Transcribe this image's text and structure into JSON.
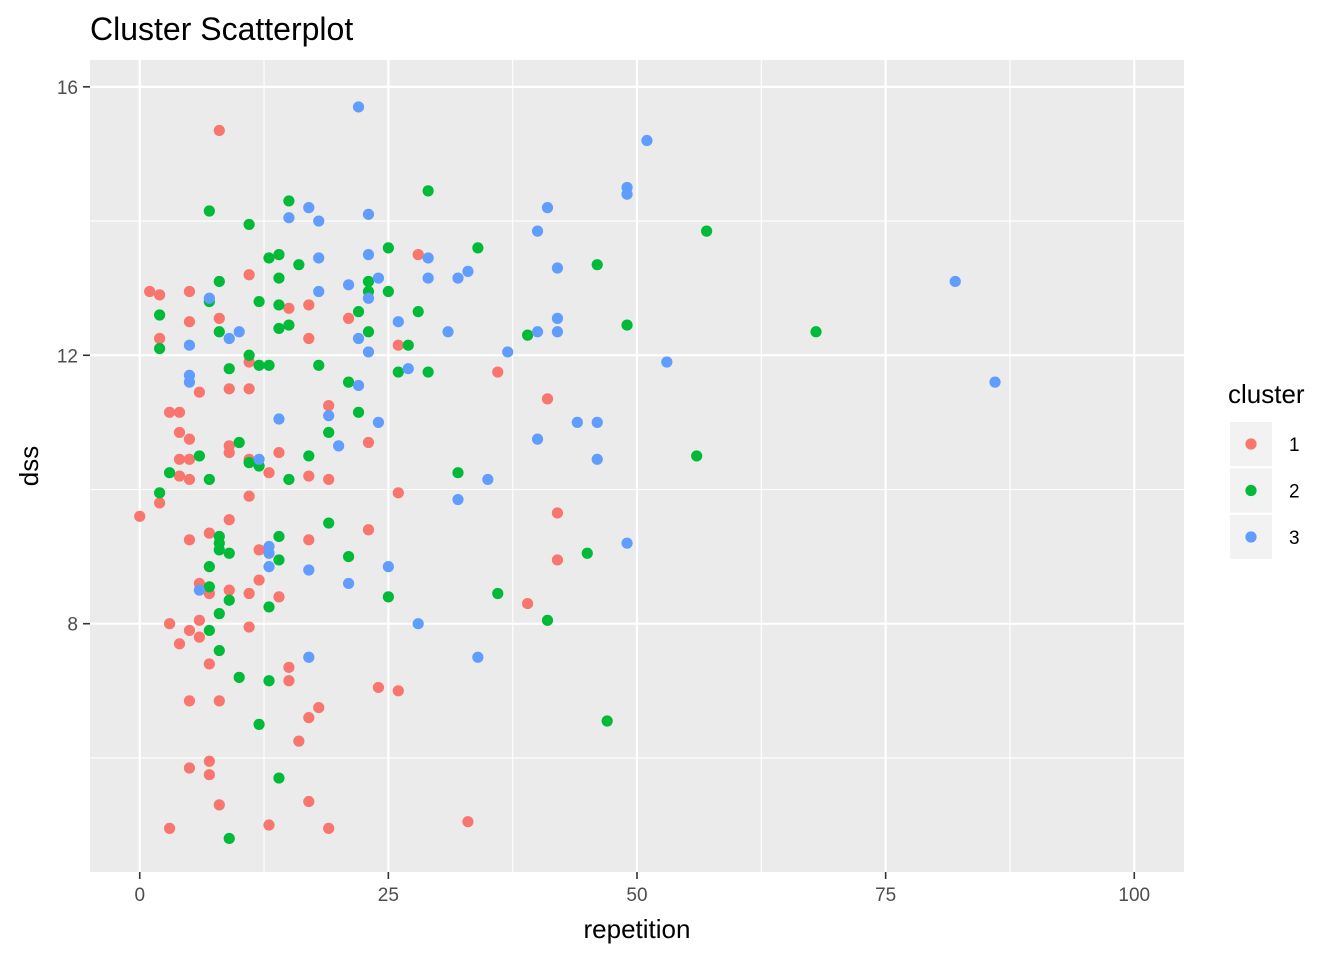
{
  "chart_data": {
    "type": "scatter",
    "title": "Cluster Scatterplot",
    "xlabel": "repetition",
    "ylabel": "dss",
    "xlim": [
      -5,
      105
    ],
    "ylim": [
      4.3,
      16.4
    ],
    "x_ticks": [
      0,
      25,
      50,
      75,
      100
    ],
    "y_ticks": [
      8,
      12,
      16
    ],
    "grid": true,
    "legend": {
      "title": "cluster",
      "position": "right"
    },
    "series": [
      {
        "name": "1",
        "color": "#F8766D",
        "points": [
          [
            0,
            9.6
          ],
          [
            1,
            12.95
          ],
          [
            2,
            12.9
          ],
          [
            2,
            12.25
          ],
          [
            2,
            9.8
          ],
          [
            3,
            11.15
          ],
          [
            3,
            8
          ],
          [
            3,
            4.95
          ],
          [
            4,
            11.15
          ],
          [
            4,
            10.85
          ],
          [
            4,
            10.45
          ],
          [
            4,
            10.2
          ],
          [
            4,
            7.7
          ],
          [
            5,
            12.95
          ],
          [
            5,
            12.5
          ],
          [
            5,
            10.75
          ],
          [
            5,
            10.45
          ],
          [
            5,
            10.15
          ],
          [
            5,
            9.25
          ],
          [
            5,
            7.9
          ],
          [
            5,
            6.85
          ],
          [
            5,
            5.85
          ],
          [
            6,
            11.45
          ],
          [
            6,
            8.6
          ],
          [
            6,
            8.05
          ],
          [
            6,
            7.8
          ],
          [
            7,
            9.35
          ],
          [
            7,
            8.45
          ],
          [
            7,
            7.4
          ],
          [
            7,
            5.95
          ],
          [
            7,
            5.75
          ],
          [
            8,
            15.35
          ],
          [
            8,
            12.55
          ],
          [
            8,
            6.85
          ],
          [
            8,
            5.3
          ],
          [
            9,
            11.5
          ],
          [
            9,
            10.65
          ],
          [
            9,
            10.55
          ],
          [
            9,
            9.55
          ],
          [
            9,
            8.5
          ],
          [
            11,
            13.2
          ],
          [
            11,
            11.9
          ],
          [
            11,
            11.5
          ],
          [
            11,
            10.45
          ],
          [
            11,
            9.9
          ],
          [
            11,
            8.45
          ],
          [
            11,
            7.95
          ],
          [
            12,
            9.1
          ],
          [
            12,
            8.65
          ],
          [
            13,
            10.25
          ],
          [
            13,
            5.0
          ],
          [
            14,
            10.55
          ],
          [
            14,
            8.4
          ],
          [
            15,
            12.7
          ],
          [
            15,
            7.35
          ],
          [
            15,
            7.15
          ],
          [
            16,
            6.25
          ],
          [
            17,
            12.75
          ],
          [
            17,
            12.25
          ],
          [
            17,
            10.2
          ],
          [
            17,
            9.25
          ],
          [
            17,
            6.6
          ],
          [
            17,
            5.35
          ],
          [
            18,
            6.75
          ],
          [
            19,
            11.25
          ],
          [
            19,
            10.15
          ],
          [
            19,
            4.95
          ],
          [
            21,
            12.55
          ],
          [
            23,
            10.7
          ],
          [
            23,
            9.4
          ],
          [
            24,
            7.05
          ],
          [
            26,
            12.15
          ],
          [
            26,
            9.95
          ],
          [
            26,
            7.0
          ],
          [
            28,
            13.5
          ],
          [
            33,
            5.05
          ],
          [
            36,
            11.75
          ],
          [
            39,
            8.3
          ],
          [
            41,
            11.35
          ],
          [
            42,
            9.65
          ],
          [
            42,
            8.95
          ]
        ]
      },
      {
        "name": "2",
        "color": "#00BA38",
        "points": [
          [
            2,
            12.6
          ],
          [
            2,
            12.1
          ],
          [
            2,
            9.95
          ],
          [
            3,
            10.25
          ],
          [
            6,
            10.5
          ],
          [
            7,
            14.15
          ],
          [
            7,
            12.8
          ],
          [
            7,
            10.15
          ],
          [
            7,
            8.85
          ],
          [
            7,
            8.55
          ],
          [
            7,
            7.9
          ],
          [
            8,
            13.1
          ],
          [
            8,
            12.35
          ],
          [
            8,
            9.3
          ],
          [
            8,
            9.2
          ],
          [
            8,
            9.1
          ],
          [
            8,
            8.15
          ],
          [
            8,
            7.6
          ],
          [
            9,
            11.8
          ],
          [
            9,
            9.05
          ],
          [
            9,
            8.35
          ],
          [
            9,
            4.8
          ],
          [
            10,
            10.7
          ],
          [
            10,
            7.2
          ],
          [
            11,
            13.95
          ],
          [
            11,
            12.0
          ],
          [
            11,
            10.4
          ],
          [
            12,
            12.8
          ],
          [
            12,
            11.85
          ],
          [
            12,
            10.35
          ],
          [
            12,
            6.5
          ],
          [
            13,
            13.45
          ],
          [
            13,
            11.85
          ],
          [
            13,
            8.25
          ],
          [
            13,
            7.15
          ],
          [
            14,
            13.5
          ],
          [
            14,
            13.15
          ],
          [
            14,
            12.75
          ],
          [
            14,
            12.4
          ],
          [
            14,
            9.3
          ],
          [
            14,
            8.95
          ],
          [
            14,
            5.7
          ],
          [
            15,
            14.3
          ],
          [
            15,
            12.45
          ],
          [
            15,
            10.15
          ],
          [
            16,
            13.35
          ],
          [
            17,
            10.5
          ],
          [
            18,
            11.85
          ],
          [
            19,
            10.85
          ],
          [
            19,
            9.5
          ],
          [
            21,
            11.6
          ],
          [
            21,
            9.0
          ],
          [
            22,
            12.65
          ],
          [
            22,
            11.15
          ],
          [
            23,
            13.1
          ],
          [
            23,
            12.95
          ],
          [
            23,
            12.35
          ],
          [
            25,
            13.6
          ],
          [
            25,
            12.95
          ],
          [
            25,
            8.4
          ],
          [
            26,
            11.75
          ],
          [
            27,
            12.15
          ],
          [
            28,
            12.65
          ],
          [
            29,
            14.45
          ],
          [
            29,
            11.75
          ],
          [
            32,
            10.25
          ],
          [
            34,
            13.6
          ],
          [
            36,
            8.45
          ],
          [
            39,
            12.3
          ],
          [
            41,
            8.05
          ],
          [
            45,
            9.05
          ],
          [
            46,
            13.35
          ],
          [
            47,
            6.55
          ],
          [
            49,
            12.45
          ],
          [
            56,
            10.5
          ],
          [
            57,
            13.85
          ],
          [
            68,
            12.35
          ]
        ]
      },
      {
        "name": "3",
        "color": "#619CFF",
        "points": [
          [
            5,
            12.15
          ],
          [
            5,
            11.7
          ],
          [
            5,
            11.6
          ],
          [
            6,
            8.5
          ],
          [
            7,
            12.85
          ],
          [
            9,
            12.25
          ],
          [
            10,
            12.35
          ],
          [
            12,
            10.45
          ],
          [
            13,
            9.15
          ],
          [
            13,
            9.05
          ],
          [
            13,
            8.85
          ],
          [
            14,
            11.05
          ],
          [
            15,
            14.05
          ],
          [
            17,
            14.2
          ],
          [
            17,
            8.8
          ],
          [
            17,
            7.5
          ],
          [
            18,
            14.0
          ],
          [
            18,
            13.45
          ],
          [
            18,
            12.95
          ],
          [
            19,
            11.1
          ],
          [
            20,
            10.65
          ],
          [
            21,
            13.05
          ],
          [
            21,
            8.6
          ],
          [
            22,
            15.7
          ],
          [
            22,
            12.25
          ],
          [
            22,
            11.55
          ],
          [
            23,
            14.1
          ],
          [
            23,
            13.5
          ],
          [
            23,
            12.85
          ],
          [
            23,
            12.05
          ],
          [
            24,
            13.15
          ],
          [
            24,
            11.0
          ],
          [
            25,
            8.85
          ],
          [
            26,
            12.5
          ],
          [
            27,
            11.8
          ],
          [
            28,
            8.0
          ],
          [
            29,
            13.45
          ],
          [
            29,
            13.15
          ],
          [
            31,
            12.35
          ],
          [
            32,
            13.15
          ],
          [
            32,
            9.85
          ],
          [
            33,
            13.25
          ],
          [
            34,
            7.5
          ],
          [
            35,
            10.15
          ],
          [
            37,
            12.05
          ],
          [
            40,
            13.85
          ],
          [
            40,
            12.35
          ],
          [
            40,
            10.75
          ],
          [
            41,
            14.2
          ],
          [
            42,
            13.3
          ],
          [
            42,
            12.55
          ],
          [
            42,
            12.35
          ],
          [
            44,
            11.0
          ],
          [
            46,
            11.0
          ],
          [
            46,
            10.45
          ],
          [
            49,
            14.5
          ],
          [
            49,
            14.4
          ],
          [
            49,
            9.2
          ],
          [
            51,
            15.2
          ],
          [
            53,
            11.9
          ],
          [
            82,
            13.1
          ],
          [
            86,
            11.6
          ]
        ]
      }
    ]
  }
}
